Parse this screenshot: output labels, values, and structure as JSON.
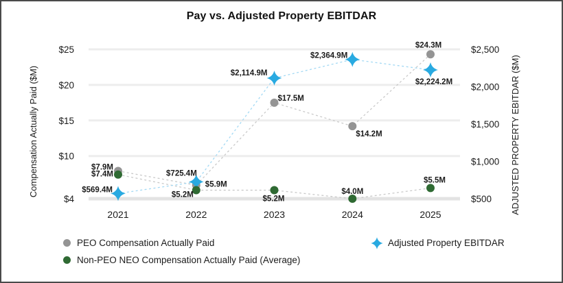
{
  "title": "Pay vs. Adjusted Property EBITDAR",
  "left_axis": {
    "label": "Compensation Actually Paid ($M)",
    "ticks": [
      "$25",
      "$20",
      "$15",
      "$10",
      "$4"
    ],
    "values": [
      25,
      20,
      15,
      10,
      4
    ]
  },
  "right_axis": {
    "label": "ADJUSTED PROPERTY EBITDAR ($M)",
    "ticks": [
      "$2,500",
      "$2,000",
      "$1,500",
      "$1,000",
      "$500"
    ],
    "values": [
      2500,
      2000,
      1500,
      1000,
      500
    ]
  },
  "colors": {
    "peo": "#949494",
    "non_peo": "#2f6a33",
    "ebitdar": "#29aae1",
    "connector_gray": "#c9c9c9",
    "connector_blue": "#a3d9f4",
    "gridline": "#ededed",
    "gridline_bottom": "#e3e3e3",
    "text": "#1b1b1b"
  },
  "chart_data": {
    "type": "line",
    "categories": [
      "2021",
      "2022",
      "2023",
      "2024",
      "2025"
    ],
    "title": "Pay vs. Adjusted Property EBITDAR",
    "grid": true,
    "legend_position": "bottom",
    "left_ylim": [
      4,
      25
    ],
    "right_ylim": [
      500,
      2500
    ],
    "series": [
      {
        "name": "PEO Compensation Actually Paid",
        "axis": "left",
        "marker": "circle",
        "color": "#949494",
        "line_color": "#c9c9c9",
        "values": [
          7.9,
          5.9,
          17.5,
          14.2,
          24.3
        ],
        "labels": [
          "$7.9M",
          "$5.9M",
          "$17.5M",
          "$14.2M",
          "$24.3M"
        ]
      },
      {
        "name": "Non-PEO NEO Compensation Actually Paid (Average)",
        "axis": "left",
        "marker": "circle",
        "color": "#2f6a33",
        "line_color": "#c9c9c9",
        "values": [
          7.4,
          5.2,
          5.2,
          4.0,
          5.5
        ],
        "labels": [
          "$7.4M",
          "$5.2M",
          "$5.2M",
          "$4.0M",
          "$5.5M"
        ]
      },
      {
        "name": "Adjusted Property EBITDAR",
        "axis": "right",
        "marker": "star",
        "color": "#29aae1",
        "line_color": "#a3d9f4",
        "values": [
          569.4,
          725.4,
          2114.9,
          2364.9,
          2224.2
        ],
        "labels": [
          "$569.4M",
          "$725.4M",
          "$2,114.9M",
          "$2,364.9M",
          "$2,224.2M"
        ]
      }
    ]
  }
}
